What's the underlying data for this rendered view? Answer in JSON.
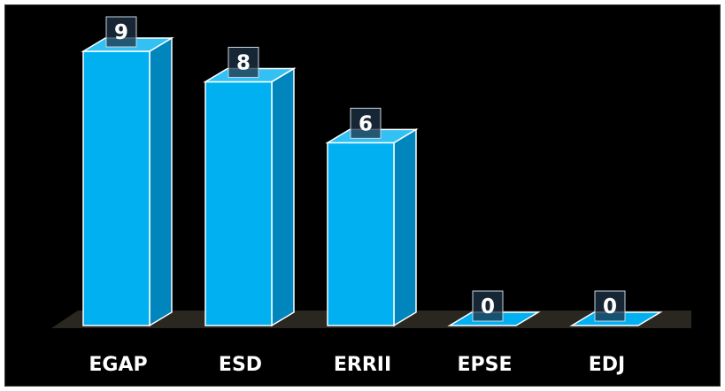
{
  "chart_data": {
    "type": "bar",
    "style": "3d-column",
    "categories": [
      "EGAP",
      "ESD",
      "ERRII",
      "EPSE",
      "EDJ"
    ],
    "values": [
      9,
      8,
      6,
      0,
      0
    ],
    "ylim": [
      0,
      9
    ],
    "grid": false,
    "legend": "none",
    "data_labels": true,
    "colors": {
      "background": "#000000",
      "bar_front": "#00b0f0",
      "bar_side": "#0085bd",
      "bar_top": "#33c1f4",
      "bar_edge": "#ffffff",
      "floor": "#2a2620",
      "label_box": "#1f3347",
      "text": "#ffffff"
    }
  }
}
